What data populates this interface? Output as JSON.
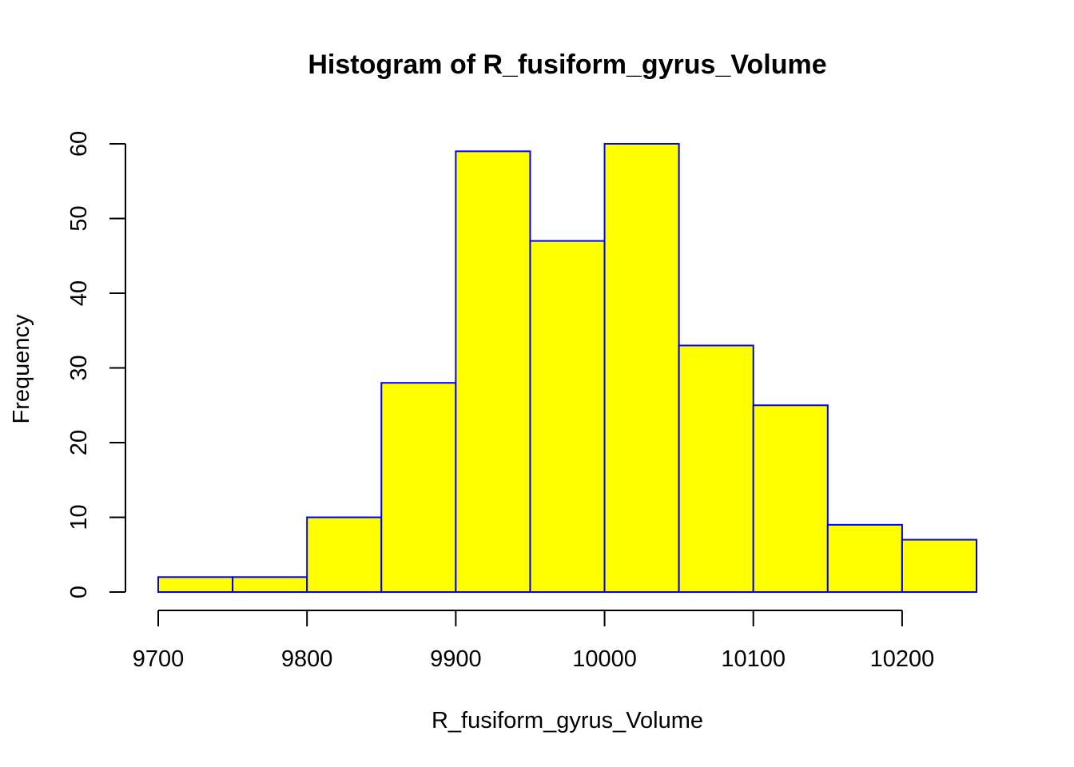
{
  "chart_data": {
    "type": "bar",
    "title": "Histogram of R_fusiform_gyrus_Volume",
    "xlabel": "R_fusiform_gyrus_Volume",
    "ylabel": "Frequency",
    "bins": [
      {
        "start": 9700,
        "end": 9750,
        "count": 2
      },
      {
        "start": 9750,
        "end": 9800,
        "count": 2
      },
      {
        "start": 9800,
        "end": 9850,
        "count": 10
      },
      {
        "start": 9850,
        "end": 9900,
        "count": 28
      },
      {
        "start": 9900,
        "end": 9950,
        "count": 59
      },
      {
        "start": 9950,
        "end": 10000,
        "count": 47
      },
      {
        "start": 10000,
        "end": 10050,
        "count": 60
      },
      {
        "start": 10050,
        "end": 10100,
        "count": 33
      },
      {
        "start": 10100,
        "end": 10150,
        "count": 25
      },
      {
        "start": 10150,
        "end": 10200,
        "count": 9
      },
      {
        "start": 10200,
        "end": 10250,
        "count": 7
      }
    ],
    "xlim": [
      9700,
      10250
    ],
    "ylim": [
      0,
      60
    ],
    "x_ticks": [
      "9700",
      "9800",
      "9900",
      "10000",
      "10100",
      "10200"
    ],
    "y_ticks": [
      "0",
      "10",
      "20",
      "30",
      "40",
      "50",
      "60"
    ],
    "colors": {
      "bar_fill": "#ffff00",
      "bar_border": "#0000ff"
    },
    "grid": false,
    "legend": "none"
  }
}
